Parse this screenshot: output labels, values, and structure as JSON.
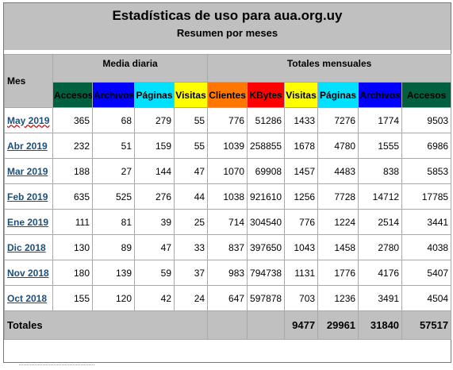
{
  "header": {
    "title": "Estadísticas de uso para aua.org.uy",
    "subtitle": "Resumen por meses"
  },
  "groups": {
    "month": "Mes",
    "daily": "Media diaria",
    "monthly": "Totales mensuales"
  },
  "columns": [
    {
      "label": "Accesos",
      "bg": "#006040",
      "fg": "#000000"
    },
    {
      "label": "Archivos",
      "bg": "#0000ff",
      "fg": "#000000"
    },
    {
      "label": "Páginas",
      "bg": "#00e0ff",
      "fg": "#000000"
    },
    {
      "label": "Visitas",
      "bg": "#ffff00",
      "fg": "#000000"
    },
    {
      "label": "Clientes",
      "bg": "#ff7700",
      "fg": "#000000"
    },
    {
      "label": "KBytes",
      "bg": "#ff0000",
      "fg": "#000000"
    },
    {
      "label": "Visitas",
      "bg": "#ffff00",
      "fg": "#000000"
    },
    {
      "label": "Páginas",
      "bg": "#00e0ff",
      "fg": "#000000"
    },
    {
      "label": "Archivos",
      "bg": "#0000ff",
      "fg": "#000000"
    },
    {
      "label": "Accesos",
      "bg": "#006040",
      "fg": "#000000"
    }
  ],
  "rows": [
    {
      "month": "May 2019",
      "values": [
        "365",
        "68",
        "279",
        "55",
        "776",
        "51286",
        "1433",
        "7276",
        "1774",
        "9503"
      ]
    },
    {
      "month": "Abr 2019",
      "values": [
        "232",
        "51",
        "159",
        "55",
        "1039",
        "258855",
        "1678",
        "4780",
        "1555",
        "6986"
      ]
    },
    {
      "month": "Mar 2019",
      "values": [
        "188",
        "27",
        "144",
        "47",
        "1070",
        "69908",
        "1457",
        "4483",
        "838",
        "5853"
      ]
    },
    {
      "month": "Feb 2019",
      "values": [
        "635",
        "525",
        "276",
        "44",
        "1038",
        "921610",
        "1256",
        "7728",
        "14712",
        "17785"
      ]
    },
    {
      "month": "Ene 2019",
      "values": [
        "111",
        "81",
        "39",
        "25",
        "714",
        "304540",
        "776",
        "1224",
        "2514",
        "3441"
      ]
    },
    {
      "month": "Dic 2018",
      "values": [
        "130",
        "89",
        "47",
        "33",
        "837",
        "397650",
        "1043",
        "1458",
        "2780",
        "4038"
      ]
    },
    {
      "month": "Nov 2018",
      "values": [
        "180",
        "139",
        "59",
        "37",
        "983",
        "794738",
        "1131",
        "1776",
        "4176",
        "5407"
      ]
    },
    {
      "month": "Oct 2018",
      "values": [
        "155",
        "120",
        "42",
        "24",
        "647",
        "597878",
        "703",
        "1236",
        "3491",
        "4504"
      ]
    }
  ],
  "totals": {
    "label": "Totales",
    "values": [
      "",
      "",
      "9477",
      "29961",
      "31840",
      "57517"
    ]
  }
}
